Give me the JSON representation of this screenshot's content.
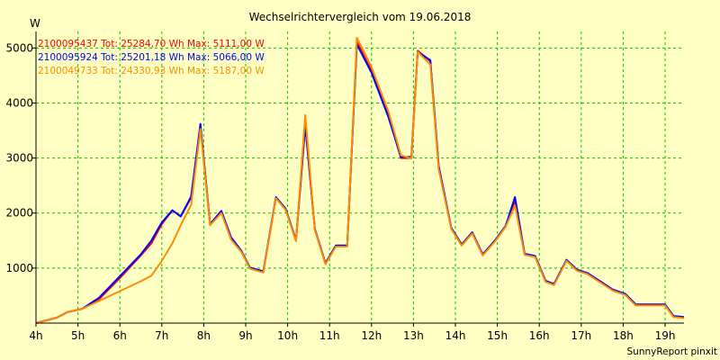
{
  "chart_data": {
    "type": "line",
    "title": "Wechselrichtervergleich vom 19.06.2018",
    "ylabel": "W",
    "xlabel": "",
    "x_unit": "h",
    "xlim": [
      4,
      19.45
    ],
    "ylim": [
      0,
      5300
    ],
    "grid": true,
    "legend_position": "top-left",
    "colors": {
      "background": "#ffffc4",
      "grid": "#00c800"
    },
    "x_ticks": [
      {
        "value": 4,
        "label": "4h"
      },
      {
        "value": 5,
        "label": "5h"
      },
      {
        "value": 6,
        "label": "6h"
      },
      {
        "value": 7,
        "label": "7h"
      },
      {
        "value": 8,
        "label": "8h"
      },
      {
        "value": 9,
        "label": "9h"
      },
      {
        "value": 10,
        "label": "10h"
      },
      {
        "value": 11,
        "label": "11h"
      },
      {
        "value": 12,
        "label": "12h"
      },
      {
        "value": 13,
        "label": "13h"
      },
      {
        "value": 14,
        "label": "14h"
      },
      {
        "value": 15,
        "label": "15h"
      },
      {
        "value": 16,
        "label": "16h"
      },
      {
        "value": 17,
        "label": "17h"
      },
      {
        "value": 18,
        "label": "18h"
      },
      {
        "value": 19,
        "label": "19h"
      }
    ],
    "y_ticks": [
      {
        "value": 1000,
        "label": "1000"
      },
      {
        "value": 2000,
        "label": "2000"
      },
      {
        "value": 3000,
        "label": "3000"
      },
      {
        "value": 4000,
        "label": "4000"
      },
      {
        "value": 5000,
        "label": "5000"
      }
    ],
    "series": [
      {
        "name": "2100095437 Tot: 25284,70 Wh Max: 5111,00 W",
        "color": "#ff0000",
        "points": [
          [
            4.0,
            0
          ],
          [
            4.5,
            100
          ],
          [
            4.75,
            200
          ],
          [
            5.1,
            260
          ],
          [
            5.5,
            430
          ],
          [
            6.0,
            820
          ],
          [
            6.5,
            1230
          ],
          [
            6.75,
            1450
          ],
          [
            7.0,
            1800
          ],
          [
            7.25,
            2050
          ],
          [
            7.45,
            1940
          ],
          [
            7.7,
            2280
          ],
          [
            7.92,
            3580
          ],
          [
            8.15,
            1790
          ],
          [
            8.42,
            2030
          ],
          [
            8.65,
            1540
          ],
          [
            8.9,
            1300
          ],
          [
            9.1,
            1000
          ],
          [
            9.42,
            930
          ],
          [
            9.72,
            2280
          ],
          [
            9.95,
            2070
          ],
          [
            10.2,
            1500
          ],
          [
            10.42,
            3600
          ],
          [
            10.65,
            1700
          ],
          [
            10.9,
            1080
          ],
          [
            11.15,
            1400
          ],
          [
            11.42,
            1400
          ],
          [
            11.65,
            5111
          ],
          [
            12.0,
            4600
          ],
          [
            12.4,
            3800
          ],
          [
            12.7,
            3000
          ],
          [
            12.95,
            3000
          ],
          [
            13.1,
            4950
          ],
          [
            13.4,
            4760
          ],
          [
            13.6,
            2850
          ],
          [
            13.9,
            1720
          ],
          [
            14.15,
            1420
          ],
          [
            14.4,
            1640
          ],
          [
            14.65,
            1240
          ],
          [
            14.95,
            1500
          ],
          [
            15.2,
            1760
          ],
          [
            15.42,
            2200
          ],
          [
            15.65,
            1250
          ],
          [
            15.9,
            1210
          ],
          [
            16.15,
            760
          ],
          [
            16.35,
            700
          ],
          [
            16.65,
            1140
          ],
          [
            16.9,
            960
          ],
          [
            17.15,
            900
          ],
          [
            17.45,
            750
          ],
          [
            17.75,
            600
          ],
          [
            18.05,
            520
          ],
          [
            18.3,
            330
          ],
          [
            18.6,
            330
          ],
          [
            19.0,
            330
          ],
          [
            19.2,
            120
          ],
          [
            19.45,
            100
          ]
        ]
      },
      {
        "name": "2100095924 Tot: 25201,18 Wh Max: 5066,00 W",
        "color": "#0000ff",
        "points": [
          [
            4.0,
            0
          ],
          [
            4.5,
            100
          ],
          [
            4.75,
            200
          ],
          [
            5.1,
            260
          ],
          [
            5.5,
            460
          ],
          [
            6.0,
            850
          ],
          [
            6.5,
            1250
          ],
          [
            6.75,
            1500
          ],
          [
            7.0,
            1830
          ],
          [
            7.25,
            2050
          ],
          [
            7.45,
            1940
          ],
          [
            7.7,
            2300
          ],
          [
            7.92,
            3620
          ],
          [
            8.15,
            1800
          ],
          [
            8.42,
            2040
          ],
          [
            8.65,
            1560
          ],
          [
            8.9,
            1310
          ],
          [
            9.1,
            1010
          ],
          [
            9.42,
            940
          ],
          [
            9.72,
            2290
          ],
          [
            9.95,
            2080
          ],
          [
            10.2,
            1510
          ],
          [
            10.42,
            3600
          ],
          [
            10.65,
            1710
          ],
          [
            10.9,
            1090
          ],
          [
            11.15,
            1410
          ],
          [
            11.42,
            1410
          ],
          [
            11.65,
            5066
          ],
          [
            12.0,
            4550
          ],
          [
            12.4,
            3750
          ],
          [
            12.7,
            3020
          ],
          [
            12.95,
            3020
          ],
          [
            13.1,
            4930
          ],
          [
            13.4,
            4780
          ],
          [
            13.6,
            2860
          ],
          [
            13.9,
            1730
          ],
          [
            14.15,
            1430
          ],
          [
            14.4,
            1650
          ],
          [
            14.65,
            1250
          ],
          [
            14.95,
            1510
          ],
          [
            15.2,
            1770
          ],
          [
            15.42,
            2290
          ],
          [
            15.65,
            1260
          ],
          [
            15.9,
            1220
          ],
          [
            16.15,
            770
          ],
          [
            16.35,
            710
          ],
          [
            16.65,
            1150
          ],
          [
            16.9,
            970
          ],
          [
            17.15,
            910
          ],
          [
            17.45,
            760
          ],
          [
            17.75,
            610
          ],
          [
            18.05,
            530
          ],
          [
            18.3,
            340
          ],
          [
            18.6,
            340
          ],
          [
            19.0,
            340
          ],
          [
            19.2,
            130
          ],
          [
            19.45,
            110
          ]
        ]
      },
      {
        "name": "2100049733 Tot: 24330,93 Wh Max: 5187,00 W",
        "color": "#ff8c00",
        "points": [
          [
            4.0,
            0
          ],
          [
            4.5,
            100
          ],
          [
            4.75,
            200
          ],
          [
            5.1,
            260
          ],
          [
            5.5,
            400
          ],
          [
            6.0,
            580
          ],
          [
            6.5,
            760
          ],
          [
            6.75,
            860
          ],
          [
            7.0,
            1130
          ],
          [
            7.25,
            1450
          ],
          [
            7.45,
            1780
          ],
          [
            7.7,
            2150
          ],
          [
            7.92,
            3530
          ],
          [
            8.15,
            1780
          ],
          [
            8.42,
            2000
          ],
          [
            8.65,
            1520
          ],
          [
            8.9,
            1290
          ],
          [
            9.1,
            990
          ],
          [
            9.42,
            920
          ],
          [
            9.72,
            2270
          ],
          [
            9.95,
            2060
          ],
          [
            10.2,
            1490
          ],
          [
            10.42,
            3780
          ],
          [
            10.65,
            1690
          ],
          [
            10.9,
            1070
          ],
          [
            11.15,
            1390
          ],
          [
            11.42,
            1390
          ],
          [
            11.65,
            5187
          ],
          [
            12.0,
            4650
          ],
          [
            12.4,
            3850
          ],
          [
            12.7,
            3050
          ],
          [
            12.95,
            2990
          ],
          [
            13.1,
            4930
          ],
          [
            13.4,
            4700
          ],
          [
            13.6,
            2800
          ],
          [
            13.9,
            1710
          ],
          [
            14.15,
            1410
          ],
          [
            14.4,
            1630
          ],
          [
            14.65,
            1230
          ],
          [
            14.95,
            1490
          ],
          [
            15.2,
            1750
          ],
          [
            15.42,
            2140
          ],
          [
            15.65,
            1240
          ],
          [
            15.9,
            1200
          ],
          [
            16.15,
            750
          ],
          [
            16.35,
            690
          ],
          [
            16.65,
            1130
          ],
          [
            16.9,
            950
          ],
          [
            17.15,
            890
          ],
          [
            17.45,
            740
          ],
          [
            17.75,
            590
          ],
          [
            18.05,
            510
          ],
          [
            18.3,
            320
          ],
          [
            18.6,
            320
          ],
          [
            19.0,
            320
          ],
          [
            19.2,
            110
          ],
          [
            19.45,
            90
          ]
        ]
      }
    ],
    "footer": "SunnyReport pinxit"
  }
}
